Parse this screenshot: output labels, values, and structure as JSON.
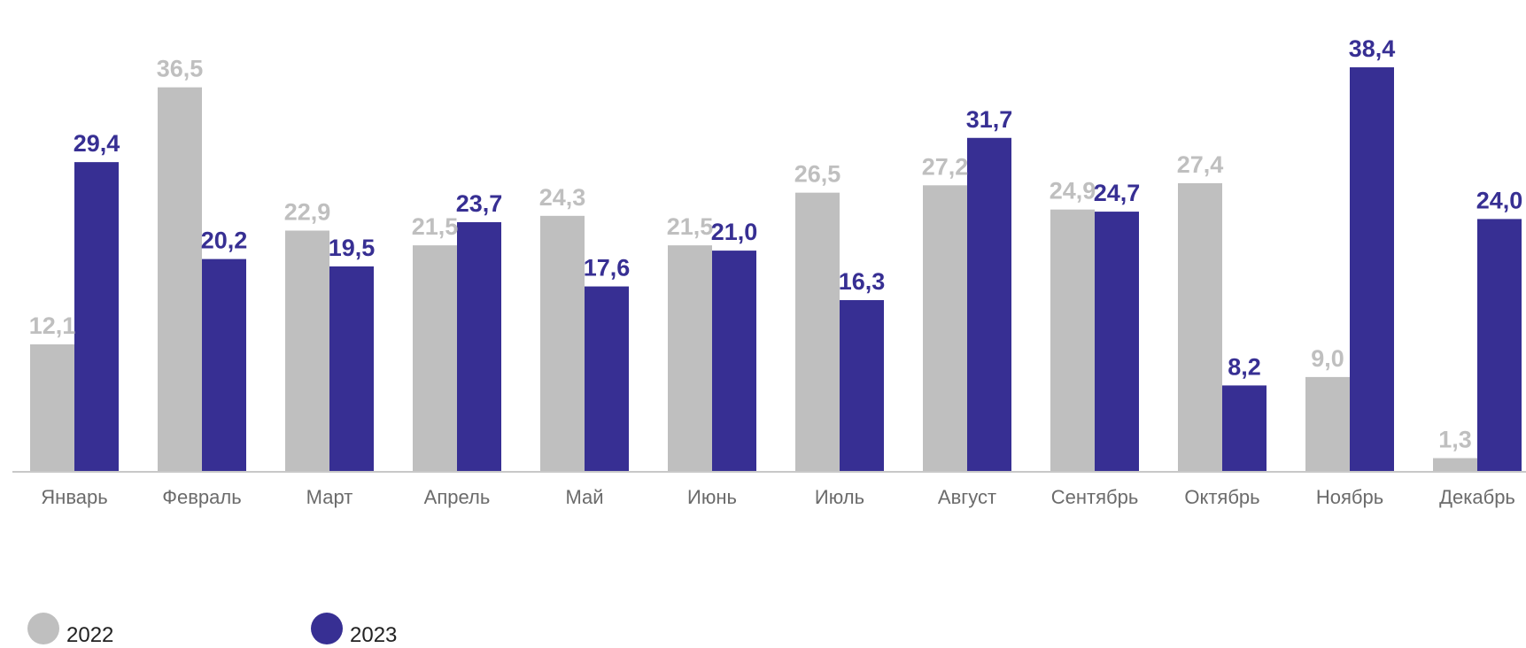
{
  "chart_data": {
    "type": "bar",
    "categories": [
      "Январь",
      "Февраль",
      "Март",
      "Апрель",
      "Май",
      "Июнь",
      "Июль",
      "Август",
      "Сентябрь",
      "Октябрь",
      "Ноябрь",
      "Декабрь"
    ],
    "series": [
      {
        "name": "2022",
        "color": "#bfbfbf",
        "values": [
          12.1,
          36.5,
          22.9,
          21.5,
          24.3,
          21.5,
          26.5,
          27.2,
          24.9,
          27.4,
          9.0,
          1.3
        ],
        "labels": [
          "12,1",
          "36,5",
          "22,9",
          "21,5",
          "24,3",
          "21,5",
          "26,5",
          "27,2",
          "24,9",
          "27,4",
          "9,0",
          "1,3"
        ]
      },
      {
        "name": "2023",
        "color": "#372f93",
        "values": [
          29.4,
          20.2,
          19.5,
          23.7,
          17.6,
          21.0,
          16.3,
          31.7,
          24.7,
          8.2,
          38.4,
          24.0
        ],
        "labels": [
          "29,4",
          "20,2",
          "19,5",
          "23,7",
          "17,6",
          "21,0",
          "16,3",
          "31,7",
          "24,7",
          "8,2",
          "38,4",
          "24,0"
        ]
      }
    ],
    "title": "",
    "xlabel": "",
    "ylabel": "",
    "ylim": [
      0,
      40
    ],
    "grid": false,
    "legend_position": "bottom-left"
  },
  "legend": [
    {
      "label": "2022",
      "color": "#bfbfbf"
    },
    {
      "label": "2023",
      "color": "#372f93"
    }
  ]
}
